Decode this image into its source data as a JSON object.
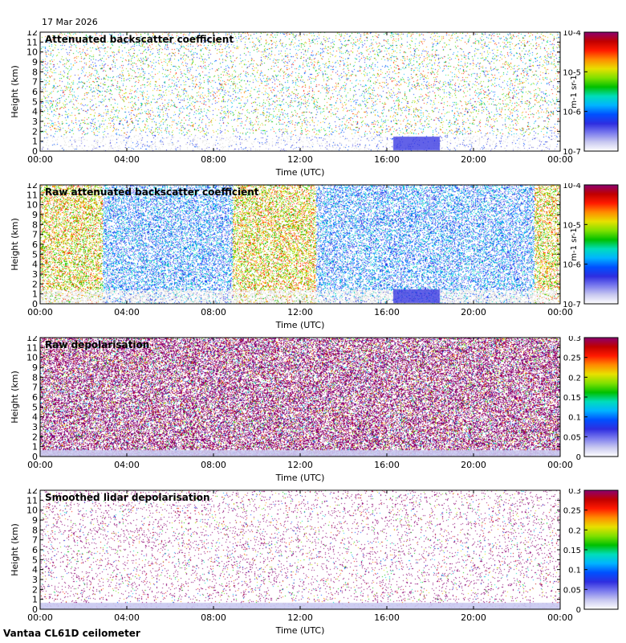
{
  "date": "17 Mar 2026",
  "footer": "Vantaa CL61D ceilometer",
  "colors": {
    "axis": "#000000",
    "background": "#ffffff",
    "low_signal": "#d8d8d8",
    "scale": [
      "#ffffff",
      "#c8c8f0",
      "#7a7aee",
      "#2e2ee0",
      "#0050ff",
      "#00b4ff",
      "#00ddbb",
      "#00c000",
      "#80e000",
      "#e8e000",
      "#ff8c00",
      "#ff1a00",
      "#c00000",
      "#8b0070"
    ]
  },
  "chart_data": [
    {
      "type": "heatmap",
      "title": "Attenuated backscatter coefficient",
      "xlabel": "Time (UTC)",
      "ylabel": "Height (km)",
      "xticks": [
        "00:00",
        "04:00",
        "08:00",
        "12:00",
        "16:00",
        "20:00",
        "00:00"
      ],
      "xlim": [
        0,
        24
      ],
      "ylim": [
        0,
        12
      ],
      "yticks": [
        "0",
        "1",
        "2",
        "3",
        "4",
        "5",
        "6",
        "7",
        "8",
        "9",
        "10",
        "11",
        "12"
      ],
      "colorbar": {
        "scale": "log",
        "ticks": [
          "10-7",
          "10-6",
          "10-5",
          "10-4"
        ],
        "label": "m-1 sr-1"
      }
    },
    {
      "type": "heatmap",
      "title": "Raw attenuated backscatter coefficient",
      "xlabel": "Time (UTC)",
      "ylabel": "Height (km)",
      "xticks": [
        "00:00",
        "04:00",
        "08:00",
        "12:00",
        "16:00",
        "20:00",
        "00:00"
      ],
      "xlim": [
        0,
        24
      ],
      "ylim": [
        0,
        12
      ],
      "yticks": [
        "0",
        "1",
        "2",
        "3",
        "4",
        "5",
        "6",
        "7",
        "8",
        "9",
        "10",
        "11",
        "12"
      ],
      "colorbar": {
        "scale": "log",
        "ticks": [
          "10-7",
          "10-6",
          "10-5",
          "10-4"
        ],
        "label": "m-1 sr-1"
      }
    },
    {
      "type": "heatmap",
      "title": "Raw depolarisation",
      "xlabel": "Time (UTC)",
      "ylabel": "Height (km)",
      "xticks": [
        "00:00",
        "04:00",
        "08:00",
        "12:00",
        "16:00",
        "20:00",
        "00:00"
      ],
      "xlim": [
        0,
        24
      ],
      "ylim": [
        0,
        12
      ],
      "yticks": [
        "0",
        "1",
        "2",
        "3",
        "4",
        "5",
        "6",
        "7",
        "8",
        "9",
        "10",
        "11",
        "12"
      ],
      "colorbar": {
        "scale": "linear",
        "ticks": [
          "0",
          "0.05",
          "0.1",
          "0.15",
          "0.2",
          "0.25",
          "0.3"
        ],
        "label": ""
      }
    },
    {
      "type": "heatmap",
      "title": "Smoothed lidar depolarisation",
      "xlabel": "Time (UTC)",
      "ylabel": "Height (km)",
      "xticks": [
        "00:00",
        "04:00",
        "08:00",
        "12:00",
        "16:00",
        "20:00",
        "00:00"
      ],
      "xlim": [
        0,
        24
      ],
      "ylim": [
        0,
        12
      ],
      "yticks": [
        "0",
        "1",
        "2",
        "3",
        "4",
        "5",
        "6",
        "7",
        "8",
        "9",
        "10",
        "11",
        "12"
      ],
      "colorbar": {
        "scale": "linear",
        "ticks": [
          "0",
          "0.05",
          "0.1",
          "0.15",
          "0.2",
          "0.25",
          "0.3"
        ],
        "label": ""
      }
    }
  ]
}
